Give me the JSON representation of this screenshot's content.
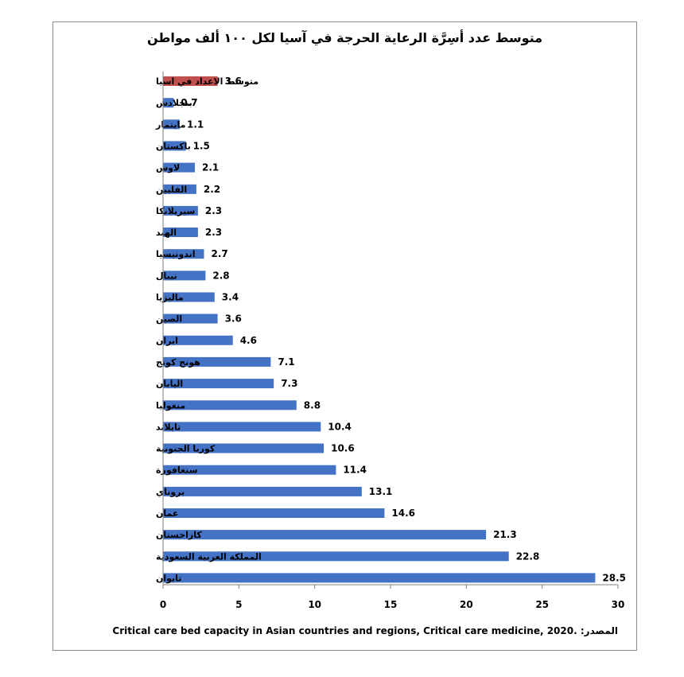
{
  "title": "متوسط عدد أسِرَّة الرعاية الحرجة في آسيا لكل ١٠٠ ألف مواطن",
  "source": {
    "prefix": "المصدر: ",
    "text": "Critical care bed capacity in Asian countries and regions, Critical care medicine, 2020."
  },
  "colors": {
    "bar": "#4472c4",
    "highlight": "#c0504d",
    "axis": "#7f7f7f"
  },
  "chart_data": {
    "type": "bar",
    "orientation": "horizontal",
    "title": "متوسط عدد أسِرَّة الرعاية الحرجة في آسيا لكل ١٠٠ ألف مواطن",
    "categories": [
      "متوسط الاعداد في اسيا",
      "بنجلادش",
      "مايتمار",
      "باكستان",
      "لاوس",
      "الفلبين",
      "سيريلانكا",
      "الهند",
      "اندونيسيا",
      "نيبال",
      "ماليزيا",
      "الصين",
      "ايران",
      "هونج كونج",
      "اليابان",
      "منغوليا",
      "تايلاند",
      "كوريا الجنوبية",
      "سنغافورة",
      "بروناي",
      "عمان",
      "كازاخستان",
      "المملكة العربية السعودية",
      "تايوان"
    ],
    "values": [
      3.6,
      0.7,
      1.1,
      1.5,
      2.1,
      2.2,
      2.3,
      2.3,
      2.7,
      2.8,
      3.4,
      3.6,
      4.6,
      7.1,
      7.3,
      8.8,
      10.4,
      10.6,
      11.4,
      13.1,
      14.6,
      21.3,
      22.8,
      28.5
    ],
    "value_labels": [
      "3.6",
      "0.7",
      "1.1",
      "1.5",
      "2.1",
      "2.2",
      "2.3",
      "2.3",
      "2.7",
      "2.8",
      "3.4",
      "3.6",
      "4.6",
      "7.1",
      "7.3",
      "8.8",
      "10.4",
      "10.6",
      "11.4",
      "13.1",
      "14.6",
      "21.3",
      "22.8",
      "28.5"
    ],
    "highlight_index": 0,
    "xlim": [
      0,
      30
    ],
    "xticks": [
      0,
      5,
      10,
      15,
      20,
      25,
      30
    ],
    "xtick_labels": [
      "0",
      "5",
      "10",
      "15",
      "20",
      "25",
      "30"
    ],
    "grid": false,
    "legend": "none"
  }
}
